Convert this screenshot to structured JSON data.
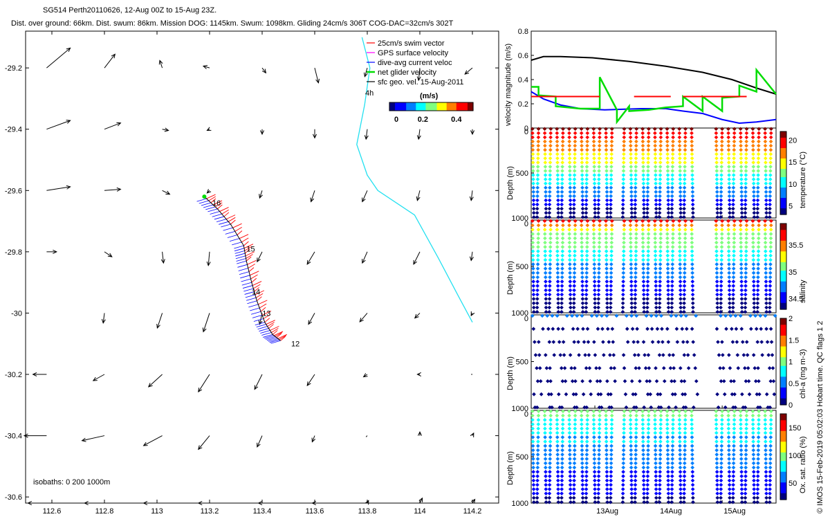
{
  "header": {
    "line1": "SG514 Perth20110626, 12-Aug 00Z to 15-Aug 23Z.",
    "line2": "Dist. over ground: 66km. Dist. swum: 86km. Mission DOG: 1145km. Swum: 1098km. Gliding 24cm/s 306T COG-DAC=32cm/s 302T"
  },
  "credit": "© IMOS 15-Feb-2019 05:02:03 Hobart time. QC flags 1  2",
  "chart_data": [
    {
      "type": "scatter",
      "title": "glider track with current vectors",
      "xlim": [
        112.5,
        114.3
      ],
      "ylim": [
        -30.62,
        -29.08
      ],
      "xticks": [
        112.6,
        112.8,
        113,
        113.2,
        113.4,
        113.6,
        113.8,
        114,
        114.2
      ],
      "xtick_labels": [
        "112.6",
        "112.8",
        "113",
        "113.2",
        "113.4",
        "113.6",
        "113.8",
        "114",
        "114.2"
      ],
      "yticks": [
        -29.2,
        -29.4,
        -29.6,
        -29.8,
        -30,
        -30.2,
        -30.4,
        -30.6
      ],
      "ytick_labels": [
        "-29.2",
        "-29.4",
        "-29.6",
        "-29.8",
        "-30",
        "-30.2",
        "-30.4",
        "-30.6"
      ],
      "legend": [
        "25cm/s swim vector",
        "GPS surface velocity",
        "dive-avg current veloc",
        "net glider velocity",
        "sfc geo. vel. 15-Aug-2011"
      ],
      "legend_colors": [
        "#ff0000",
        "#ff00ff",
        "#0000ff",
        "#00dd00",
        "#000000"
      ],
      "colorbar_label": "(m/s)",
      "colorbar_ticks": [
        "0",
        "0.2",
        "0.4"
      ],
      "colorbar_range": [
        0,
        0.5
      ],
      "day_labels": [
        "16",
        "15",
        "14",
        "13",
        "12"
      ],
      "day_positions": [
        [
          113.2,
          -29.64
        ],
        [
          113.33,
          -29.79
        ],
        [
          113.35,
          -29.93
        ],
        [
          113.39,
          -30.0
        ],
        [
          113.5,
          -30.1
        ]
      ],
      "track": [
        [
          113.47,
          -30.09
        ],
        [
          113.44,
          -30.07
        ],
        [
          113.41,
          -30.03
        ],
        [
          113.38,
          -29.96
        ],
        [
          113.36,
          -29.9
        ],
        [
          113.34,
          -29.83
        ],
        [
          113.33,
          -29.78
        ],
        [
          113.28,
          -29.71
        ],
        [
          113.23,
          -29.66
        ],
        [
          113.18,
          -29.62
        ]
      ],
      "isobath_label": "isobaths: 0   200   1000m",
      "isobath": [
        [
          113.78,
          -29.1
        ],
        [
          113.81,
          -29.2
        ],
        [
          113.79,
          -29.32
        ],
        [
          113.76,
          -29.45
        ],
        [
          113.8,
          -29.55
        ],
        [
          113.84,
          -29.6
        ],
        [
          113.98,
          -29.68
        ],
        [
          114.07,
          -29.82
        ],
        [
          114.15,
          -29.95
        ],
        [
          114.2,
          -30.03
        ]
      ],
      "annotation": "4h",
      "vectors": [
        [
          112.58,
          -29.2,
          0.38,
          0.32
        ],
        [
          112.8,
          -29.2,
          0.17,
          0.22
        ],
        [
          113.02,
          -29.2,
          -0.04,
          0.12
        ],
        [
          113.2,
          -29.2,
          -0.1,
          0.03
        ],
        [
          113.4,
          -29.2,
          0.06,
          -0.08
        ],
        [
          113.6,
          -29.2,
          0.06,
          -0.24
        ],
        [
          113.8,
          -29.2,
          -0.04,
          -0.14
        ],
        [
          114.0,
          -29.2,
          -0.02,
          -0.2
        ],
        [
          114.2,
          -29.2,
          -0.12,
          -0.1
        ],
        [
          112.58,
          -29.4,
          0.38,
          0.14
        ],
        [
          112.8,
          -29.4,
          0.26,
          0.1
        ],
        [
          113.02,
          -29.4,
          0.1,
          -0.02
        ],
        [
          113.2,
          -29.4,
          -0.04,
          -0.02
        ],
        [
          113.4,
          -29.4,
          0.0,
          -0.08
        ],
        [
          113.6,
          -29.4,
          0.0,
          -0.14
        ],
        [
          113.8,
          -29.4,
          -0.02,
          -0.16
        ],
        [
          114.0,
          -29.4,
          -0.02,
          -0.16
        ],
        [
          114.2,
          -29.4,
          0.0,
          -0.08
        ],
        [
          112.58,
          -29.6,
          0.38,
          0.06
        ],
        [
          112.8,
          -29.6,
          0.26,
          0.02
        ],
        [
          113.02,
          -29.6,
          0.12,
          -0.06
        ],
        [
          113.2,
          -29.6,
          -0.04,
          -0.04
        ],
        [
          113.4,
          -29.6,
          -0.04,
          -0.12
        ],
        [
          113.6,
          -29.6,
          -0.06,
          -0.18
        ],
        [
          113.8,
          -29.6,
          -0.08,
          -0.18
        ],
        [
          114.0,
          -29.6,
          -0.04,
          -0.16
        ],
        [
          114.2,
          -29.6,
          -0.02,
          -0.16
        ],
        [
          112.58,
          -29.8,
          0.16,
          0.0
        ],
        [
          112.8,
          -29.8,
          0.12,
          -0.08
        ],
        [
          113.02,
          -29.8,
          0.02,
          -0.18
        ],
        [
          113.2,
          -29.8,
          -0.02,
          -0.22
        ],
        [
          113.4,
          -29.8,
          -0.08,
          -0.16
        ],
        [
          113.6,
          -29.8,
          -0.12,
          -0.2
        ],
        [
          113.8,
          -29.8,
          -0.08,
          -0.18
        ],
        [
          114.0,
          -29.8,
          -0.1,
          -0.2
        ],
        [
          114.2,
          -29.8,
          -0.02,
          -0.14
        ],
        [
          112.58,
          -30.0,
          0.0,
          0.0
        ],
        [
          112.8,
          -30.0,
          -0.02,
          -0.16
        ],
        [
          113.02,
          -30.0,
          -0.08,
          -0.24
        ],
        [
          113.2,
          -30.0,
          -0.1,
          -0.3
        ],
        [
          113.4,
          -30.0,
          -0.04,
          -0.18
        ],
        [
          113.6,
          -30.0,
          -0.1,
          -0.18
        ],
        [
          113.8,
          -30.0,
          -0.12,
          -0.14
        ],
        [
          114.0,
          -30.0,
          -0.08,
          -0.08
        ],
        [
          114.2,
          -30.0,
          -0.02,
          -0.04
        ],
        [
          112.58,
          -30.2,
          -0.22,
          0.0
        ],
        [
          112.8,
          -30.2,
          -0.18,
          -0.1
        ],
        [
          113.02,
          -30.2,
          -0.22,
          -0.2
        ],
        [
          113.2,
          -30.2,
          -0.18,
          -0.28
        ],
        [
          113.4,
          -30.2,
          -0.12,
          -0.24
        ],
        [
          113.6,
          -30.2,
          -0.12,
          -0.18
        ],
        [
          113.8,
          -30.2,
          -0.06,
          -0.04
        ],
        [
          114.0,
          -30.2,
          -0.04,
          0.0
        ],
        [
          114.2,
          -30.2,
          -0.02,
          0.0
        ],
        [
          112.58,
          -30.4,
          -0.36,
          0.0
        ],
        [
          112.8,
          -30.4,
          -0.36,
          -0.08
        ],
        [
          113.02,
          -30.4,
          -0.3,
          -0.16
        ],
        [
          113.2,
          -30.4,
          -0.18,
          -0.22
        ],
        [
          113.4,
          -30.4,
          -0.08,
          -0.18
        ],
        [
          113.6,
          -30.4,
          -0.04,
          -0.1
        ],
        [
          113.8,
          -30.4,
          -0.02,
          -0.02
        ],
        [
          114.0,
          -30.4,
          0.0,
          0.06
        ],
        [
          114.2,
          -30.4,
          0.02,
          0.04
        ],
        [
          112.58,
          -30.62,
          -0.3,
          0.0
        ],
        [
          112.8,
          -30.62,
          -0.32,
          0.0
        ],
        [
          113.02,
          -30.62,
          -0.3,
          0.0
        ],
        [
          113.2,
          -30.62,
          -0.18,
          0.0
        ],
        [
          113.4,
          -30.62,
          -0.06,
          0.0
        ],
        [
          113.6,
          -30.62,
          -0.04,
          0.0
        ],
        [
          113.8,
          -30.62,
          0.02,
          0.04
        ],
        [
          114.0,
          -30.62,
          0.04,
          0.08
        ],
        [
          114.2,
          -30.62,
          0.04,
          0.06
        ]
      ]
    },
    {
      "type": "line",
      "ylabel": "velocity magnitude (m/s)",
      "ylim": [
        0,
        0.8
      ],
      "yticks": [
        0,
        0.2,
        0.4,
        0.6,
        0.8
      ],
      "ytick_labels": [
        "0",
        "0.2",
        "0.4",
        "0.6",
        "0.8"
      ],
      "series": [
        {
          "name": "sfc geo. vel.",
          "color": "#000000",
          "x": [
            0,
            0.05,
            0.12,
            0.25,
            0.4,
            0.55,
            0.7,
            0.82,
            0.92,
            1.0
          ],
          "y": [
            0.56,
            0.59,
            0.59,
            0.58,
            0.55,
            0.51,
            0.46,
            0.4,
            0.33,
            0.28
          ]
        },
        {
          "name": "dive-avg current veloc",
          "color": "#0000ff",
          "x": [
            0,
            0.05,
            0.12,
            0.2,
            0.3,
            0.45,
            0.55,
            0.62,
            0.7,
            0.78,
            0.85,
            0.92,
            1.0
          ],
          "y": [
            0.3,
            0.24,
            0.19,
            0.16,
            0.15,
            0.16,
            0.16,
            0.14,
            0.12,
            0.07,
            0.04,
            0.05,
            0.07
          ]
        },
        {
          "name": "net glider velocity",
          "color": "#00dd00",
          "x": [
            0,
            0.03,
            0.03,
            0.1,
            0.1,
            0.2,
            0.28,
            0.28,
            0.35,
            0.35,
            0.4,
            0.4,
            0.48,
            0.55,
            0.62,
            0.62,
            0.7,
            0.7,
            0.78,
            0.78,
            0.85,
            0.85,
            0.92,
            0.92,
            1.0
          ],
          "y": [
            0.34,
            0.34,
            0.27,
            0.26,
            0.18,
            0.16,
            0.16,
            0.42,
            0.15,
            0.05,
            0.18,
            0.14,
            0.15,
            0.17,
            0.18,
            0.26,
            0.14,
            0.26,
            0.14,
            0.25,
            0.26,
            0.35,
            0.3,
            0.48,
            0.28
          ]
        },
        {
          "name": "25cm/s swim vector",
          "color": "#ff0000",
          "segments": [
            [
              0.0,
              0.28,
              0.26
            ],
            [
              0.42,
              0.57,
              0.26
            ],
            [
              0.62,
              0.88,
              0.26
            ]
          ]
        }
      ]
    },
    {
      "type": "scatter",
      "ylabel": "Depth (m)",
      "ylim": [
        1000,
        0
      ],
      "yticks": [
        0,
        500,
        1000
      ],
      "ytick_labels": [
        "0",
        "500",
        "1000"
      ],
      "colorbar_label": "temperature (°C)",
      "colorbar_ticks": [
        "5",
        "10",
        "15",
        "20"
      ],
      "colorbar_range": [
        3,
        22
      ]
    },
    {
      "type": "scatter",
      "ylabel": "Depth (m)",
      "ylim": [
        1000,
        0
      ],
      "yticks": [
        0,
        500,
        1000
      ],
      "ytick_labels": [
        "0",
        "500",
        "1000"
      ],
      "colorbar_label": "salinity",
      "colorbar_ticks": [
        "34.5",
        "35",
        "35.5"
      ],
      "colorbar_range": [
        34.3,
        35.9
      ]
    },
    {
      "type": "scatter",
      "ylabel": "Depth (m)",
      "ylim": [
        1000,
        0
      ],
      "yticks": [
        0,
        500,
        1000
      ],
      "ytick_labels": [
        "0",
        "500",
        "1000"
      ],
      "colorbar_label": "chl-a (mg m-3)",
      "colorbar_ticks": [
        "0",
        "0.5",
        "1",
        "1.5",
        "2"
      ],
      "colorbar_range": [
        0,
        2
      ]
    },
    {
      "type": "scatter",
      "ylabel": "Depth (m)",
      "ylim": [
        1000,
        0
      ],
      "yticks": [
        0,
        500,
        1000
      ],
      "ytick_labels": [
        "0",
        "500",
        "1000"
      ],
      "colorbar_label": "Ox. sat. ratio (%)",
      "colorbar_ticks": [
        "50",
        "100",
        "150"
      ],
      "colorbar_range": [
        20,
        175
      ],
      "xtick_labels": [
        "13Aug",
        "14Aug",
        "15Aug"
      ]
    }
  ],
  "time_axis": {
    "range": [
      0,
      1
    ],
    "day_ticks": [
      0.26,
      0.52,
      0.78
    ],
    "dive_gaps": [
      [
        0.34,
        0.37
      ],
      [
        0.66,
        0.74
      ]
    ]
  },
  "colormap": [
    "#00007f",
    "#0000ff",
    "#007fff",
    "#00ffff",
    "#7fff7f",
    "#ffff00",
    "#ff7f00",
    "#ff0000",
    "#7f0000"
  ]
}
